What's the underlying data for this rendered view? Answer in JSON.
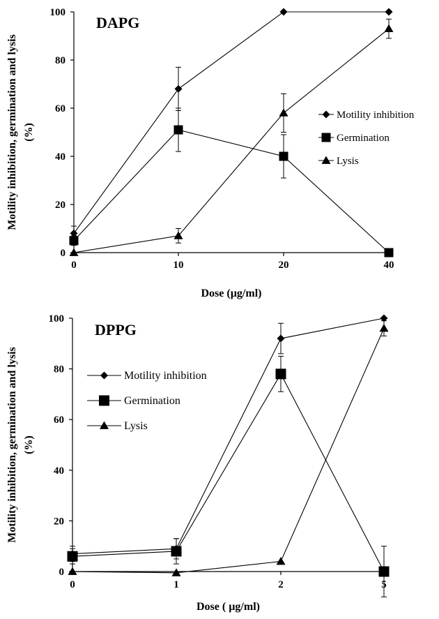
{
  "chart_data": [
    {
      "type": "line",
      "title": "DAPG",
      "xlabel": "Dose (µg/ml)",
      "ylabel": "Motility inhibition, germination and lysis (%)",
      "ylabel_lines": [
        "Motility inhibition, germination and lysis",
        "(%)"
      ],
      "categories": [
        "0",
        "10",
        "20",
        "40"
      ],
      "ylim": [
        0,
        100
      ],
      "yticks": [
        "0",
        "20",
        "40",
        "60",
        "80",
        "100"
      ],
      "legend_position": "right",
      "series": [
        {
          "name": "Motility inhibition",
          "marker": "diamond",
          "values": [
            8,
            68,
            100,
            100
          ],
          "errors": [
            3,
            9,
            0,
            0
          ]
        },
        {
          "name": "Germination",
          "marker": "square",
          "values": [
            5,
            51,
            40,
            0
          ],
          "errors": [
            2,
            9,
            9,
            0
          ]
        },
        {
          "name": "Lysis",
          "marker": "triangle",
          "values": [
            0,
            7,
            58,
            93
          ],
          "errors": [
            0,
            3,
            8,
            4
          ]
        }
      ]
    },
    {
      "type": "line",
      "title": "DPPG",
      "xlabel": "Dose ( µg/ml)",
      "ylabel": "Motility inhibition, germination and lysis (%)",
      "ylabel_lines": [
        "Motility inhibition, germination and lysis",
        "(%)"
      ],
      "categories": [
        "0",
        "1",
        "2",
        "5"
      ],
      "ylim": [
        0,
        100
      ],
      "yticks": [
        "0",
        "20",
        "40",
        "60",
        "80",
        "100"
      ],
      "legend_position": "top-left",
      "series": [
        {
          "name": "Motility inhibition",
          "marker": "diamond",
          "values": [
            7,
            9,
            92,
            100
          ],
          "errors": [
            3,
            4,
            6,
            0
          ]
        },
        {
          "name": "Germination",
          "marker": "square",
          "values": [
            6,
            8,
            78,
            0
          ],
          "errors": [
            3,
            5,
            7,
            10
          ]
        },
        {
          "name": "Lysis",
          "marker": "triangle",
          "values": [
            0,
            -0.5,
            4,
            96
          ],
          "errors": [
            0,
            0,
            0,
            3
          ]
        }
      ]
    }
  ]
}
